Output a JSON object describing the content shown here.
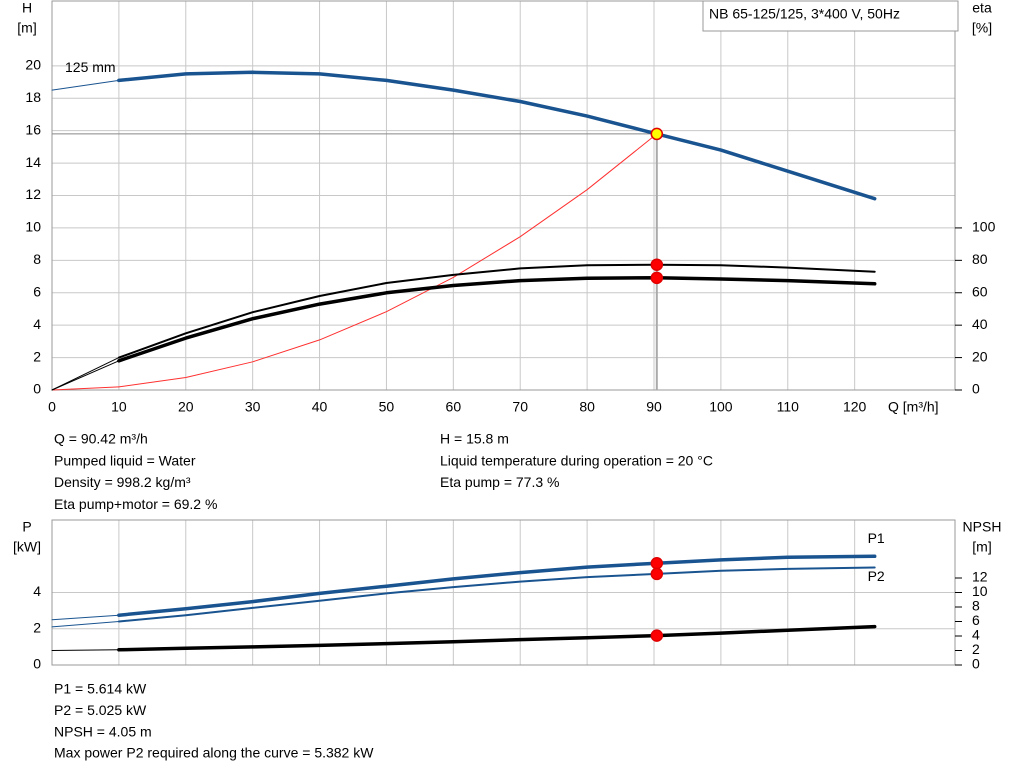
{
  "chart_data": [
    {
      "type": "line",
      "title": "NB 65-125/125, 3*400 V, 50Hz",
      "ylabel": "H",
      "yunit": "[m]",
      "y2label": "eta",
      "y2unit": "[%]",
      "xlabel": "Q [m³/h]",
      "xlim": [
        0,
        135
      ],
      "xticks": [
        0,
        10,
        20,
        30,
        40,
        50,
        60,
        70,
        80,
        90,
        100,
        110,
        120
      ],
      "ylim": [
        0,
        24
      ],
      "yticks": [
        0,
        2,
        4,
        6,
        8,
        10,
        12,
        14,
        16,
        18,
        20
      ],
      "y2lim": [
        0,
        240
      ],
      "y2ticks": [
        0,
        20,
        40,
        60,
        80,
        100
      ],
      "grid": true,
      "operating_point": 90.42,
      "reference_lines": true,
      "series": [
        {
          "name": "125 mm",
          "label_position": "start",
          "color": "#1a5490",
          "line_width": 3.5,
          "marker_color": "#ffff00",
          "x": [
            0,
            10,
            20,
            30,
            40,
            50,
            60,
            70,
            80,
            90.42,
            100,
            110,
            123
          ],
          "values": [
            18.5,
            19.1,
            19.5,
            19.6,
            19.5,
            19.1,
            18.5,
            17.8,
            16.9,
            15.8,
            14.8,
            13.5,
            11.8
          ]
        },
        {
          "color": "#ff3030",
          "line_width": 1,
          "x": [
            0,
            10,
            20,
            30,
            40,
            50,
            60,
            70,
            80,
            90.42
          ],
          "values": [
            0,
            0.19,
            0.77,
            1.74,
            3.09,
            4.83,
            6.95,
            9.46,
            12.36,
            15.8
          ]
        },
        {
          "axis": "y2",
          "color": "#000000",
          "line_width": 2,
          "marker_color": "#ff0000",
          "x": [
            0,
            10,
            20,
            30,
            40,
            50,
            60,
            70,
            80,
            90.42,
            100,
            110,
            123
          ],
          "values": [
            0,
            20,
            35,
            48,
            58,
            66,
            71,
            75,
            77,
            77.3,
            77,
            75.5,
            73
          ]
        },
        {
          "axis": "y2",
          "color": "#000000",
          "line_width": 3.5,
          "marker_color": "#ff0000",
          "x": [
            0,
            10,
            20,
            30,
            40,
            50,
            60,
            70,
            80,
            90.42,
            100,
            110,
            123
          ],
          "values": [
            0,
            18,
            32,
            44,
            53,
            60,
            64.5,
            67.5,
            69,
            69.2,
            68.5,
            67.5,
            65.5
          ]
        }
      ],
      "notes": [
        [
          "Q = 90.42 m³/h",
          "Pumped liquid = Water",
          "Density = 998.2 kg/m³",
          "Eta pump+motor = 69.2 %"
        ],
        [
          "H = 15.8 m",
          "Liquid temperature during operation = 20 °C",
          "Eta pump = 77.3 %"
        ]
      ]
    },
    {
      "type": "line",
      "ylabel": "P",
      "yunit": "[kW]",
      "y2label": "NPSH",
      "y2unit": "[m]",
      "xlim": [
        0,
        135
      ],
      "xticks": [
        0,
        10,
        20,
        30,
        40,
        50,
        60,
        70,
        80,
        90,
        100,
        110,
        120
      ],
      "xtick_labels": false,
      "ylim": [
        0,
        8
      ],
      "yticks": [
        0,
        2,
        4
      ],
      "y2lim": [
        0,
        20
      ],
      "y2ticks": [
        0,
        2,
        4,
        6,
        8,
        10,
        12
      ],
      "grid": true,
      "operating_point": 90.42,
      "series": [
        {
          "name": "P1",
          "label_position": "end-above",
          "color": "#1a5490",
          "line_width": 3.5,
          "marker_color": "#ff0000",
          "x": [
            0,
            10,
            20,
            30,
            40,
            50,
            60,
            70,
            80,
            90.42,
            100,
            110,
            123
          ],
          "values": [
            2.5,
            2.75,
            3.1,
            3.5,
            3.95,
            4.35,
            4.75,
            5.1,
            5.4,
            5.614,
            5.8,
            5.95,
            6.0
          ]
        },
        {
          "name": "P2",
          "label_position": "end-below",
          "color": "#1a5490",
          "line_width": 2,
          "marker_color": "#ff0000",
          "x": [
            0,
            10,
            20,
            30,
            40,
            50,
            60,
            70,
            80,
            90.42,
            100,
            110,
            123
          ],
          "values": [
            2.1,
            2.4,
            2.75,
            3.15,
            3.55,
            3.95,
            4.3,
            4.6,
            4.85,
            5.025,
            5.2,
            5.3,
            5.382
          ]
        },
        {
          "axis": "y2",
          "color": "#000000",
          "line_width": 3.5,
          "marker_color": "#ff0000",
          "x": [
            0,
            10,
            20,
            30,
            40,
            50,
            60,
            70,
            80,
            90.42,
            100,
            110,
            123
          ],
          "values": [
            2.0,
            2.1,
            2.3,
            2.5,
            2.7,
            2.95,
            3.2,
            3.5,
            3.75,
            4.05,
            4.4,
            4.8,
            5.3
          ]
        }
      ],
      "notes": [
        [
          "P1 = 5.614 kW",
          "P2 = 5.025 kW",
          "NPSH = 4.05 m",
          "Max power P2 required along the curve = 5.382 kW"
        ]
      ]
    }
  ]
}
